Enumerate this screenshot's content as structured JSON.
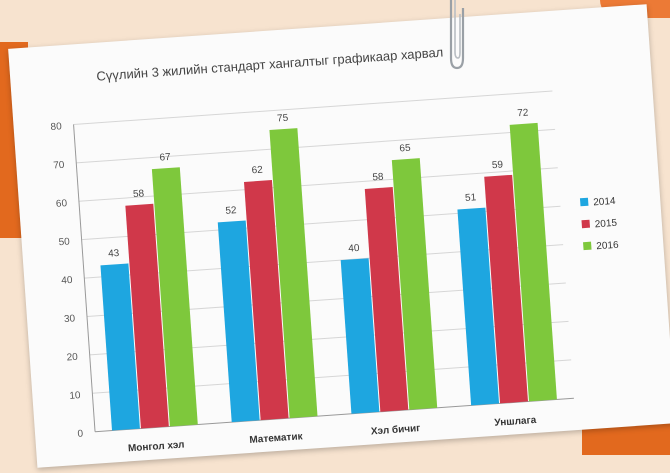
{
  "chart_data": {
    "type": "bar",
    "title": "Сүүлийн 3 жилийн стандарт хангалтыг графикаар харвал",
    "categories": [
      "Монгол хэл",
      "Математик",
      "Хэл бичиг",
      "Уншлага"
    ],
    "series": [
      {
        "name": "2014",
        "values": [
          43,
          52,
          40,
          51
        ],
        "color": "#1ea6e0"
      },
      {
        "name": "2015",
        "values": [
          58,
          62,
          58,
          59
        ],
        "color": "#d0384a"
      },
      {
        "name": "2016",
        "values": [
          67,
          75,
          65,
          72
        ],
        "color": "#7ec83c"
      }
    ],
    "ylim": [
      0,
      80
    ],
    "yticks": [
      0,
      10,
      20,
      30,
      40,
      50,
      60,
      70,
      80
    ],
    "grid": true,
    "legend_position": "right",
    "xlabel": "",
    "ylabel": ""
  }
}
